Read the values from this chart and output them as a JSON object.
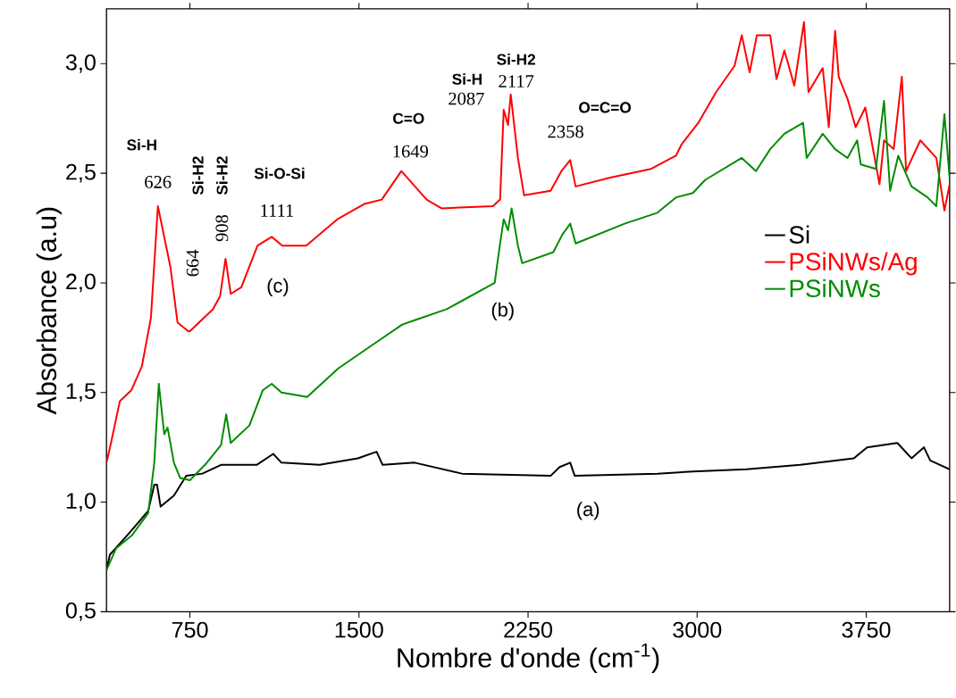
{
  "chart_data": {
    "type": "line",
    "xlabel": "Nombre d'onde (cm$^{-1}$)",
    "ylabel": "Absorbance (a.u)",
    "xlim": [
      380,
      4120
    ],
    "ylim": [
      0.5,
      3.25
    ],
    "xticks": [
      750,
      1500,
      2250,
      3000,
      3750
    ],
    "yticks": [
      {
        "value": 0.5,
        "label": "0,5"
      },
      {
        "value": 1.0,
        "label": "1,0"
      },
      {
        "value": 1.5,
        "label": "1,5"
      },
      {
        "value": 2.0,
        "label": "2,0"
      },
      {
        "value": 2.5,
        "label": "2,5"
      },
      {
        "value": 3.0,
        "label": "3,0"
      }
    ],
    "legend": "right",
    "grid": false,
    "series": [
      {
        "name": "Si",
        "color": "#000000",
        "x": [
          380,
          395,
          482,
          565,
          592,
          604,
          620,
          679,
          734,
          805,
          888,
          1046,
          1120,
          1156,
          1325,
          1495,
          1578,
          1605,
          1747,
          1956,
          2350,
          2390,
          2437,
          2457,
          2824,
          2981,
          3218,
          3458,
          3695,
          3754,
          3888,
          3951,
          4006,
          4034,
          4120
        ],
        "values": [
          0.69,
          0.76,
          0.86,
          0.96,
          1.08,
          1.08,
          0.98,
          1.03,
          1.12,
          1.13,
          1.17,
          1.17,
          1.22,
          1.18,
          1.17,
          1.2,
          1.23,
          1.17,
          1.18,
          1.13,
          1.12,
          1.16,
          1.18,
          1.12,
          1.13,
          1.14,
          1.15,
          1.17,
          1.2,
          1.25,
          1.27,
          1.2,
          1.25,
          1.19,
          1.15
        ]
      },
      {
        "name": "PSiNWs/Ag",
        "color": "#ff0000",
        "x": [
          380,
          400,
          439,
          490,
          537,
          577,
          608,
          664,
          695,
          742,
          750,
          852,
          884,
          908,
          931,
          978,
          1050,
          1113,
          1160,
          1266,
          1404,
          1523,
          1601,
          1688,
          1800,
          1866,
          2094,
          2126,
          2142,
          2161,
          2173,
          2205,
          2232,
          2350,
          2398,
          2437,
          2461,
          2614,
          2796,
          2906,
          2930,
          3005,
          3084,
          3166,
          3198,
          3233,
          3265,
          3324,
          3352,
          3387,
          3431,
          3474,
          3494,
          3557,
          3584,
          3612,
          3628,
          3667,
          3703,
          3746,
          3809,
          3829,
          3872,
          3908,
          3927,
          3990,
          4061,
          4097,
          4120
        ],
        "values": [
          1.18,
          1.27,
          1.46,
          1.51,
          1.62,
          1.84,
          2.35,
          2.07,
          1.82,
          1.78,
          1.78,
          1.88,
          1.94,
          2.11,
          1.95,
          1.98,
          2.17,
          2.21,
          2.17,
          2.17,
          2.29,
          2.36,
          2.38,
          2.51,
          2.38,
          2.34,
          2.35,
          2.38,
          2.79,
          2.72,
          2.86,
          2.57,
          2.4,
          2.42,
          2.51,
          2.56,
          2.44,
          2.48,
          2.52,
          2.58,
          2.63,
          2.73,
          2.87,
          2.99,
          3.13,
          2.96,
          3.13,
          3.13,
          2.93,
          3.06,
          2.9,
          3.19,
          2.87,
          2.98,
          2.71,
          3.15,
          2.94,
          2.84,
          2.71,
          2.8,
          2.45,
          2.65,
          2.61,
          2.94,
          2.51,
          2.65,
          2.57,
          2.33,
          2.45
        ]
      },
      {
        "name": "PSiNWs",
        "color": "#008c00",
        "x": [
          380,
          423,
          494,
          565,
          592,
          612,
          636,
          651,
          679,
          707,
          750,
          817,
          888,
          911,
          931,
          1014,
          1073,
          1113,
          1156,
          1270,
          1408,
          1578,
          1692,
          1747,
          1889,
          2102,
          2126,
          2142,
          2161,
          2177,
          2205,
          2224,
          2362,
          2402,
          2437,
          2461,
          2678,
          2824,
          2906,
          2981,
          3036,
          3198,
          3261,
          3324,
          3387,
          3470,
          3486,
          3557,
          3612,
          3667,
          3710,
          3726,
          3793,
          3829,
          3856,
          3892,
          3951,
          4022,
          4061,
          4097,
          4120
        ],
        "values": [
          0.69,
          0.79,
          0.85,
          0.95,
          1.18,
          1.54,
          1.31,
          1.34,
          1.18,
          1.11,
          1.1,
          1.17,
          1.26,
          1.4,
          1.27,
          1.35,
          1.51,
          1.54,
          1.5,
          1.48,
          1.61,
          1.73,
          1.81,
          1.83,
          1.88,
          2.0,
          2.18,
          2.29,
          2.24,
          2.34,
          2.17,
          2.09,
          2.14,
          2.22,
          2.27,
          2.18,
          2.27,
          2.32,
          2.39,
          2.41,
          2.47,
          2.57,
          2.51,
          2.61,
          2.68,
          2.73,
          2.57,
          2.68,
          2.61,
          2.57,
          2.65,
          2.54,
          2.52,
          2.83,
          2.42,
          2.58,
          2.44,
          2.39,
          2.35,
          2.77,
          2.48
        ]
      }
    ],
    "annotations": [
      "Si-H",
      "626",
      "Si-H2",
      "664",
      "908",
      "Si-H2",
      "Si-O-Si",
      "1111",
      "(c)",
      "C=O",
      "1649",
      "Si-H",
      "2087",
      "Si-H2",
      "2117",
      "O=C=O",
      "2358",
      "(b)",
      "(a)"
    ]
  }
}
